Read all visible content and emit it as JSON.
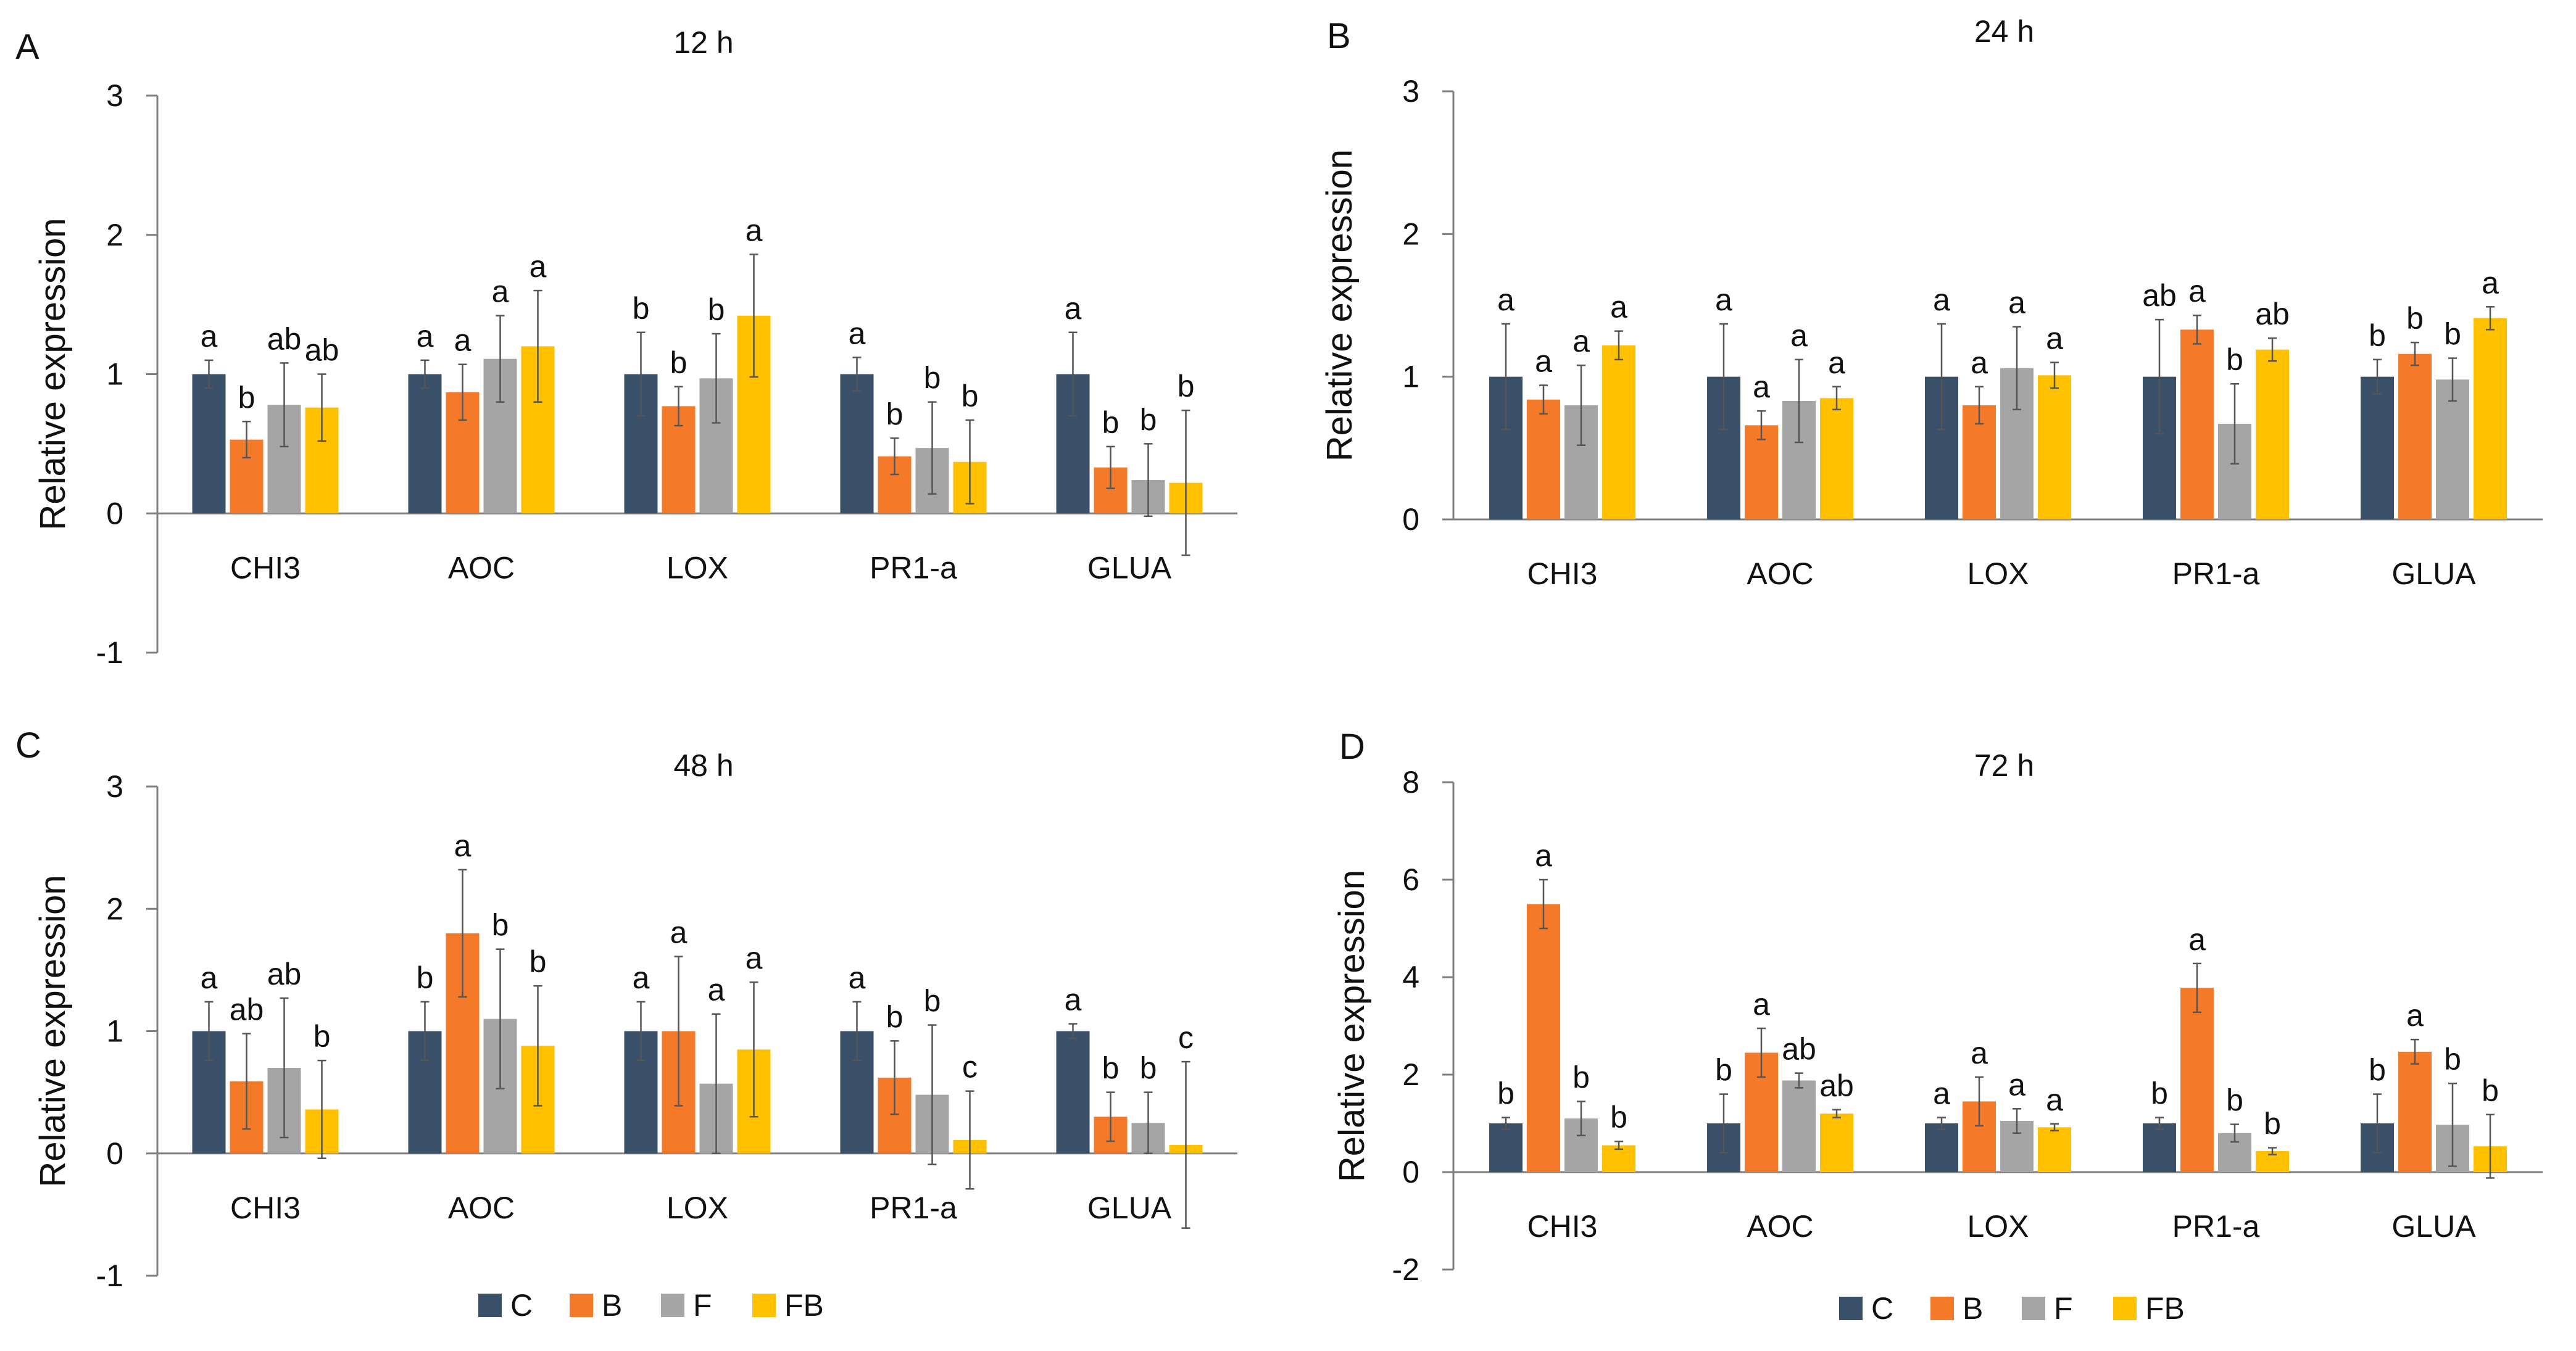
{
  "colors": {
    "C": "#3a4f68",
    "B": "#f47a2a",
    "F": "#a5a5a5",
    "FB": "#ffc000"
  },
  "legend": [
    {
      "key": "C",
      "label": "C"
    },
    {
      "key": "B",
      "label": "B"
    },
    {
      "key": "F",
      "label": "F"
    },
    {
      "key": "FB",
      "label": "FB"
    }
  ],
  "chart_data": [
    {
      "panel": "A",
      "title": "12 h",
      "type": "bar",
      "ylabel": "Relative expression",
      "ylim": [
        -1,
        3
      ],
      "yticks": [
        -1,
        0,
        1,
        2,
        3
      ],
      "categories": [
        "CHI3",
        "AOC",
        "LOX",
        "PR1-a",
        "GLUA"
      ],
      "series": [
        {
          "name": "C",
          "values": [
            1.0,
            1.0,
            1.0,
            1.0,
            1.0
          ],
          "err": [
            0.1,
            0.1,
            0.3,
            0.12,
            0.3
          ],
          "sig": [
            "a",
            "a",
            "b",
            "a",
            "a"
          ]
        },
        {
          "name": "B",
          "values": [
            0.53,
            0.87,
            0.77,
            0.41,
            0.33
          ],
          "err": [
            0.13,
            0.2,
            0.14,
            0.13,
            0.15
          ],
          "sig": [
            "b",
            "a",
            "b",
            "b",
            "b"
          ]
        },
        {
          "name": "F",
          "values": [
            0.78,
            1.11,
            0.97,
            0.47,
            0.24
          ],
          "err": [
            0.3,
            0.31,
            0.32,
            0.33,
            0.26
          ],
          "sig": [
            "ab",
            "a",
            "b",
            "b",
            "b"
          ]
        },
        {
          "name": "FB",
          "values": [
            0.76,
            1.2,
            1.42,
            0.37,
            0.22
          ],
          "err": [
            0.24,
            0.4,
            0.44,
            0.3,
            0.52
          ],
          "sig": [
            "ab",
            "a",
            "a",
            "b",
            "b"
          ]
        }
      ]
    },
    {
      "panel": "B",
      "title": "24 h",
      "type": "bar",
      "ylabel": "Relative expression",
      "ylim": [
        0,
        3
      ],
      "yticks": [
        0,
        1,
        2,
        3
      ],
      "categories": [
        "CHI3",
        "AOC",
        "LOX",
        "PR1-a",
        "GLUA"
      ],
      "series": [
        {
          "name": "C",
          "values": [
            1.0,
            1.0,
            1.0,
            1.0,
            1.0
          ],
          "err": [
            0.37,
            0.37,
            0.37,
            0.4,
            0.12
          ],
          "sig": [
            "a",
            "a",
            "a",
            "ab",
            "b"
          ]
        },
        {
          "name": "B",
          "values": [
            0.84,
            0.66,
            0.8,
            1.33,
            1.16
          ],
          "err": [
            0.1,
            0.1,
            0.13,
            0.1,
            0.08
          ],
          "sig": [
            "a",
            "a",
            "a",
            "a",
            "b"
          ]
        },
        {
          "name": "F",
          "values": [
            0.8,
            0.83,
            1.06,
            0.67,
            0.98
          ],
          "err": [
            0.28,
            0.29,
            0.29,
            0.28,
            0.15
          ],
          "sig": [
            "a",
            "a",
            "a",
            "b",
            "b"
          ]
        },
        {
          "name": "FB",
          "values": [
            1.22,
            0.85,
            1.01,
            1.19,
            1.41
          ],
          "err": [
            0.1,
            0.08,
            0.09,
            0.08,
            0.08
          ],
          "sig": [
            "a",
            "a",
            "a",
            "ab",
            "a"
          ]
        }
      ]
    },
    {
      "panel": "C",
      "title": "48 h",
      "type": "bar",
      "ylabel": "Relative expression",
      "ylim": [
        -1,
        3
      ],
      "yticks": [
        -1,
        0,
        1,
        2,
        3
      ],
      "categories": [
        "CHI3",
        "AOC",
        "LOX",
        "PR1-a",
        "GLUA"
      ],
      "series": [
        {
          "name": "C",
          "values": [
            1.0,
            1.0,
            1.0,
            1.0,
            1.0
          ],
          "err": [
            0.24,
            0.24,
            0.24,
            0.24,
            0.06
          ],
          "sig": [
            "a",
            "b",
            "a",
            "a",
            "a"
          ]
        },
        {
          "name": "B",
          "values": [
            0.59,
            1.8,
            1.0,
            0.62,
            0.3
          ],
          "err": [
            0.39,
            0.52,
            0.61,
            0.3,
            0.2
          ],
          "sig": [
            "ab",
            "a",
            "a",
            "b",
            "b"
          ]
        },
        {
          "name": "F",
          "values": [
            0.7,
            1.1,
            0.57,
            0.48,
            0.25
          ],
          "err": [
            0.57,
            0.57,
            0.57,
            0.57,
            0.25
          ],
          "sig": [
            "ab",
            "b",
            "a",
            "b",
            "b"
          ]
        },
        {
          "name": "FB",
          "values": [
            0.36,
            0.88,
            0.85,
            0.11,
            0.07
          ],
          "err": [
            0.4,
            0.49,
            0.55,
            0.4,
            0.68
          ],
          "sig": [
            "b",
            "b",
            "a",
            "c",
            "c"
          ]
        }
      ]
    },
    {
      "panel": "D",
      "title": "72 h",
      "type": "bar",
      "ylabel": "Relative expression",
      "ylim": [
        -2,
        8
      ],
      "yticks": [
        -2,
        0,
        2,
        4,
        6,
        8
      ],
      "categories": [
        "CHI3",
        "AOC",
        "LOX",
        "PR1-a",
        "GLUA"
      ],
      "series": [
        {
          "name": "C",
          "values": [
            1.0,
            1.0,
            1.0,
            1.0,
            1.0
          ],
          "err": [
            0.12,
            0.6,
            0.12,
            0.12,
            0.6
          ],
          "sig": [
            "b",
            "b",
            "a",
            "b",
            "b"
          ]
        },
        {
          "name": "B",
          "values": [
            5.5,
            2.45,
            1.45,
            3.78,
            2.47
          ],
          "err": [
            0.5,
            0.5,
            0.5,
            0.5,
            0.25
          ],
          "sig": [
            "a",
            "a",
            "a",
            "a",
            "a"
          ]
        },
        {
          "name": "F",
          "values": [
            1.1,
            1.88,
            1.05,
            0.8,
            0.97
          ],
          "err": [
            0.35,
            0.15,
            0.25,
            0.18,
            0.85
          ],
          "sig": [
            "b",
            "ab",
            "a",
            "b",
            "b"
          ]
        },
        {
          "name": "FB",
          "values": [
            0.55,
            1.2,
            0.92,
            0.43,
            0.53
          ],
          "err": [
            0.08,
            0.08,
            0.07,
            0.07,
            0.65
          ],
          "sig": [
            "b",
            "ab",
            "a",
            "b",
            "b"
          ]
        }
      ]
    }
  ]
}
